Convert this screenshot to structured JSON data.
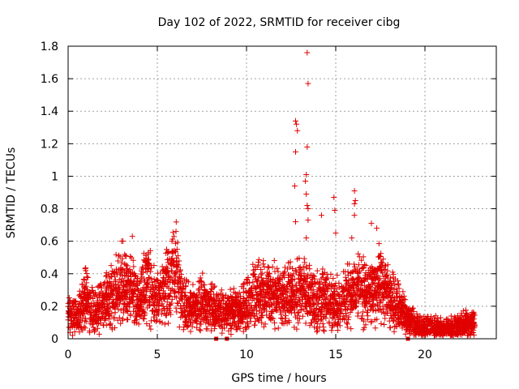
{
  "chart_data": {
    "type": "scatter",
    "title": "Day 102 of 2022, SRMTID for receiver cibg",
    "xlabel": "GPS time / hours",
    "ylabel": "SRMTID / TECUs",
    "xlim": [
      0,
      24
    ],
    "ylim": [
      0,
      1.8
    ],
    "xticks": [
      0,
      5,
      10,
      15,
      20
    ],
    "xtick_labels": [
      "0",
      "5",
      "10",
      "15",
      "20"
    ],
    "yticks": [
      0,
      0.2,
      0.4,
      0.6,
      0.8,
      1.0,
      1.2,
      1.4,
      1.6,
      1.8
    ],
    "ytick_labels": [
      "0",
      "0.2",
      "0.4",
      "0.6",
      "0.8",
      "1",
      "1.2",
      "1.4",
      "1.6",
      "1.8"
    ],
    "grid": true,
    "marker": "plus",
    "color": "#e00000",
    "series": [
      {
        "name": "SRMTID",
        "baseline_profile": [
          [
            0.0,
            0.15
          ],
          [
            0.5,
            0.14
          ],
          [
            1.0,
            0.25
          ],
          [
            1.5,
            0.15
          ],
          [
            2.0,
            0.22
          ],
          [
            2.5,
            0.27
          ],
          [
            3.0,
            0.35
          ],
          [
            3.5,
            0.3
          ],
          [
            4.0,
            0.22
          ],
          [
            4.5,
            0.38
          ],
          [
            5.0,
            0.22
          ],
          [
            5.5,
            0.32
          ],
          [
            6.0,
            0.42
          ],
          [
            6.5,
            0.22
          ],
          [
            7.0,
            0.18
          ],
          [
            7.5,
            0.23
          ],
          [
            8.0,
            0.2
          ],
          [
            8.5,
            0.16
          ],
          [
            9.0,
            0.16
          ],
          [
            9.5,
            0.17
          ],
          [
            10.0,
            0.2
          ],
          [
            10.5,
            0.27
          ],
          [
            11.0,
            0.27
          ],
          [
            11.5,
            0.27
          ],
          [
            12.0,
            0.25
          ],
          [
            12.5,
            0.28
          ],
          [
            13.0,
            0.3
          ],
          [
            13.5,
            0.25
          ],
          [
            14.0,
            0.25
          ],
          [
            14.5,
            0.25
          ],
          [
            15.0,
            0.2
          ],
          [
            15.5,
            0.25
          ],
          [
            16.0,
            0.3
          ],
          [
            16.5,
            0.28
          ],
          [
            17.0,
            0.3
          ],
          [
            17.5,
            0.32
          ],
          [
            18.0,
            0.25
          ],
          [
            18.5,
            0.2
          ],
          [
            19.0,
            0.12
          ],
          [
            19.5,
            0.08
          ],
          [
            20.0,
            0.07
          ],
          [
            20.5,
            0.07
          ],
          [
            21.0,
            0.06
          ],
          [
            21.5,
            0.07
          ],
          [
            22.0,
            0.08
          ],
          [
            22.5,
            0.1
          ],
          [
            22.8,
            0.11
          ]
        ],
        "notable_points": [
          [
            13.4,
            1.76
          ],
          [
            13.45,
            1.57
          ],
          [
            12.75,
            1.34
          ],
          [
            12.8,
            1.32
          ],
          [
            12.85,
            1.28
          ],
          [
            13.4,
            1.18
          ],
          [
            12.75,
            1.15
          ],
          [
            13.35,
            1.01
          ],
          [
            13.3,
            0.97
          ],
          [
            12.7,
            0.94
          ],
          [
            13.35,
            0.89
          ],
          [
            14.9,
            0.87
          ],
          [
            16.05,
            0.91
          ],
          [
            16.1,
            0.85
          ],
          [
            16.05,
            0.83
          ],
          [
            13.4,
            0.82
          ],
          [
            13.45,
            0.8
          ],
          [
            14.95,
            0.79
          ],
          [
            14.2,
            0.76
          ],
          [
            16.05,
            0.76
          ],
          [
            13.45,
            0.73
          ],
          [
            12.75,
            0.72
          ],
          [
            17.0,
            0.71
          ],
          [
            17.3,
            0.68
          ],
          [
            15.0,
            0.65
          ],
          [
            13.35,
            0.62
          ],
          [
            15.9,
            0.62
          ],
          [
            3.6,
            0.63
          ],
          [
            3.0,
            0.6
          ],
          [
            4.5,
            0.53
          ],
          [
            5.9,
            0.48
          ],
          [
            8.3,
            0.0
          ],
          [
            8.9,
            0.0
          ],
          [
            19.05,
            0.0
          ]
        ]
      }
    ]
  }
}
